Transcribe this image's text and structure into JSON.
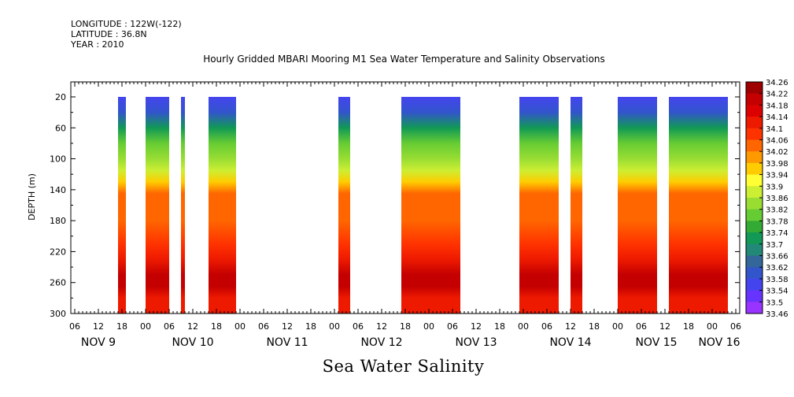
{
  "meta": {
    "longitude": "LONGITUDE : 122W(-122)",
    "latitude": "LATITUDE : 36.8N",
    "year": "YEAR : 2010"
  },
  "chart_data": {
    "type": "heatmap",
    "title": "Hourly Gridded MBARI Mooring M1 Sea Water Temperature and Salinity Observations",
    "bottom_title": "Sea Water Salinity",
    "ylabel": "DEPTH (m)",
    "y_range": [
      0,
      300
    ],
    "y_tick_labels": [
      "20",
      "60",
      "100",
      "140",
      "180",
      "220",
      "260",
      "300"
    ],
    "x_range_hours": [
      "2010-11-09 00:00",
      "2010-11-16 09:00"
    ],
    "x_hour_labels": [
      "06",
      "12",
      "18",
      "00",
      "06",
      "12",
      "18",
      "00",
      "06",
      "12",
      "18",
      "00",
      "06",
      "12",
      "18",
      "00",
      "06",
      "12",
      "18",
      "00",
      "06",
      "12",
      "18",
      "00",
      "06",
      "12",
      "18",
      "00",
      "06"
    ],
    "x_day_labels": [
      "NOV  9",
      "NOV 10",
      "NOV 11",
      "NOV 12",
      "NOV 13",
      "NOV 14",
      "NOV 15",
      "NOV 16"
    ],
    "data_segments": [
      {
        "start": "2010-11-09 17:00",
        "end": "2010-11-09 19:00"
      },
      {
        "start": "2010-11-10 00:00",
        "end": "2010-11-10 06:00"
      },
      {
        "start": "2010-11-10 09:00",
        "end": "2010-11-10 10:00"
      },
      {
        "start": "2010-11-10 16:00",
        "end": "2010-11-10 23:00"
      },
      {
        "start": "2010-11-12 01:00",
        "end": "2010-11-12 04:00"
      },
      {
        "start": "2010-11-12 17:00",
        "end": "2010-11-13 08:00"
      },
      {
        "start": "2010-11-13 23:00",
        "end": "2010-11-14 09:00"
      },
      {
        "start": "2010-11-14 12:00",
        "end": "2010-11-14 15:00"
      },
      {
        "start": "2010-11-15 00:00",
        "end": "2010-11-15 10:00"
      },
      {
        "start": "2010-11-15 13:00",
        "end": "2010-11-16 04:00"
      }
    ],
    "colorbar": {
      "levels": [
        "34.26",
        "34.22",
        "34.18",
        "34.14",
        "34.1",
        "34.06",
        "34.02",
        "33.98",
        "33.94",
        "33.9",
        "33.86",
        "33.82",
        "33.78",
        "33.74",
        "33.7",
        "33.66",
        "33.62",
        "33.58",
        "33.54",
        "33.5",
        "33.46"
      ],
      "colors": [
        "#9e0000",
        "#c40000",
        "#dd0000",
        "#ee1a00",
        "#ff3300",
        "#ff6600",
        "#ff9900",
        "#ffcc00",
        "#ffff33",
        "#ccee33",
        "#99dd33",
        "#66cc33",
        "#33aa33",
        "#119955",
        "#228877",
        "#336699",
        "#3355cc",
        "#4444ee",
        "#6633ff",
        "#9933ff"
      ]
    },
    "depth_profile": [
      {
        "depth": 20,
        "value": 33.58
      },
      {
        "depth": 40,
        "value": 33.62
      },
      {
        "depth": 60,
        "value": 33.74
      },
      {
        "depth": 80,
        "value": 33.82
      },
      {
        "depth": 100,
        "value": 33.84
      },
      {
        "depth": 115,
        "value": 33.88
      },
      {
        "depth": 130,
        "value": 33.96
      },
      {
        "depth": 145,
        "value": 34.04
      },
      {
        "depth": 180,
        "value": 34.05
      },
      {
        "depth": 210,
        "value": 34.07
      },
      {
        "depth": 230,
        "value": 34.14
      },
      {
        "depth": 250,
        "value": 34.22
      },
      {
        "depth": 265,
        "value": 34.2
      },
      {
        "depth": 280,
        "value": 34.14
      },
      {
        "depth": 300,
        "value": 34.12
      }
    ]
  }
}
